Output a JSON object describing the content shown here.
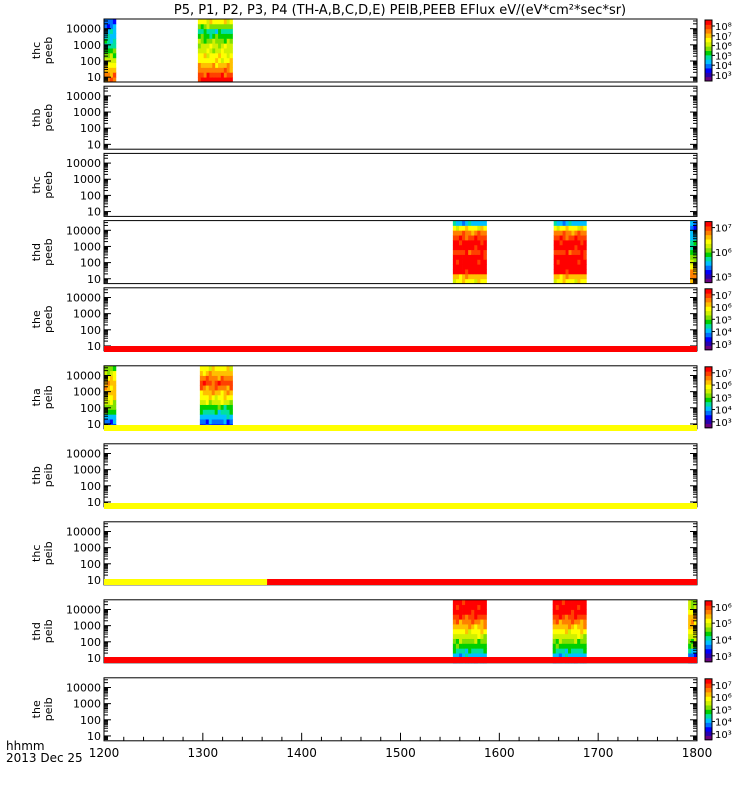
{
  "title": "P5, P1, P2, P3, P4 (TH-A,B,C,D,E) PEIB,PEEB EFlux eV/(eV*cm²*sec*sr)",
  "footer": {
    "line1": "hhmm",
    "line2": "2013 Dec 25"
  },
  "colors": {
    "red": "#ff0000",
    "yellow": "#ffff00"
  },
  "colorscale": [
    "#6a0080",
    "#2a00b0",
    "#0000ff",
    "#0070ff",
    "#00c0ff",
    "#00e0a0",
    "#00d000",
    "#80e000",
    "#d0f000",
    "#ffff00",
    "#ffc000",
    "#ff8000",
    "#ff4000",
    "#ff0000"
  ],
  "chart_data": {
    "type": "heatmap",
    "x_ticks": [
      "1200",
      "1300",
      "1400",
      "1500",
      "1600",
      "1700",
      "1800"
    ],
    "xlim": [
      1200,
      1800
    ],
    "y_ticks": [
      "10",
      "100",
      "1000",
      "10000"
    ],
    "panels": [
      {
        "ylabel": [
          "thc",
          "peeb"
        ],
        "has_colorbar": true,
        "cb_ticks": [
          "10³",
          "10⁴",
          "10⁵",
          "10⁶",
          "10⁷",
          "10⁸"
        ],
        "blocks": [
          {
            "x0": 1200,
            "x1": 1212,
            "style": "peeb-edge"
          },
          {
            "x0": 1295,
            "x1": 1330,
            "style": "peeb-thc"
          }
        ]
      },
      {
        "ylabel": [
          "thb",
          "peeb"
        ],
        "has_colorbar": false,
        "blocks": []
      },
      {
        "ylabel": [
          "thc",
          "peeb"
        ],
        "has_colorbar": false,
        "blocks": []
      },
      {
        "ylabel": [
          "thd",
          "peeb"
        ],
        "has_colorbar": true,
        "cb_ticks": [
          "10⁵",
          "10⁶",
          "10⁷"
        ],
        "blocks": [
          {
            "x0": 1553,
            "x1": 1587,
            "style": "peeb-thd"
          },
          {
            "x0": 1655,
            "x1": 1688,
            "style": "peeb-thd"
          },
          {
            "x0": 1793,
            "x1": 1800,
            "style": "peeb-edge"
          }
        ]
      },
      {
        "ylabel": [
          "the",
          "peeb"
        ],
        "has_colorbar": true,
        "cb_ticks": [
          "10³",
          "10⁴",
          "10⁵",
          "10⁶",
          "10⁷"
        ],
        "blocks": []
      },
      {
        "ylabel": [
          "tha",
          "peib"
        ],
        "has_colorbar": true,
        "cb_ticks": [
          "10³",
          "10⁴",
          "10⁵",
          "10⁶",
          "10⁷"
        ],
        "blocks": [
          {
            "x0": 1200,
            "x1": 1212,
            "style": "peib-edge"
          },
          {
            "x0": 1297,
            "x1": 1330,
            "style": "peib-tha"
          }
        ]
      },
      {
        "ylabel": [
          "thb",
          "peib"
        ],
        "has_colorbar": false,
        "blocks": []
      },
      {
        "ylabel": [
          "thc",
          "peib"
        ],
        "has_colorbar": false,
        "blocks": []
      },
      {
        "ylabel": [
          "thd",
          "peib"
        ],
        "has_colorbar": true,
        "cb_ticks": [
          "10³",
          "10⁴",
          "10⁵",
          "10⁶"
        ],
        "blocks": [
          {
            "x0": 1553,
            "x1": 1587,
            "style": "peib-thd"
          },
          {
            "x0": 1654,
            "x1": 1688,
            "style": "peib-thd"
          },
          {
            "x0": 1791,
            "x1": 1800,
            "style": "peib-edge"
          }
        ]
      },
      {
        "ylabel": [
          "the",
          "peib"
        ],
        "has_colorbar": true,
        "cb_ticks": [
          "10³",
          "10⁴",
          "10⁵",
          "10⁶",
          "10⁷"
        ],
        "blocks": []
      }
    ],
    "mode_bars": [
      {
        "after_panel": 4,
        "segments": [
          {
            "x0": 1200,
            "x1": 1800,
            "color": "red"
          }
        ]
      },
      {
        "after_panel": 5,
        "segments": [
          {
            "x0": 1200,
            "x1": 1800,
            "color": "yellow"
          }
        ]
      },
      {
        "after_panel": 6,
        "segments": [
          {
            "x0": 1200,
            "x1": 1800,
            "color": "yellow"
          }
        ]
      },
      {
        "after_panel": 7,
        "segments": [
          {
            "x0": 1200,
            "x1": 1365,
            "color": "yellow"
          },
          {
            "x0": 1365,
            "x1": 1800,
            "color": "red"
          }
        ]
      },
      {
        "after_panel": 8,
        "segments": [
          {
            "x0": 1200,
            "x1": 1800,
            "color": "red"
          }
        ]
      }
    ]
  }
}
